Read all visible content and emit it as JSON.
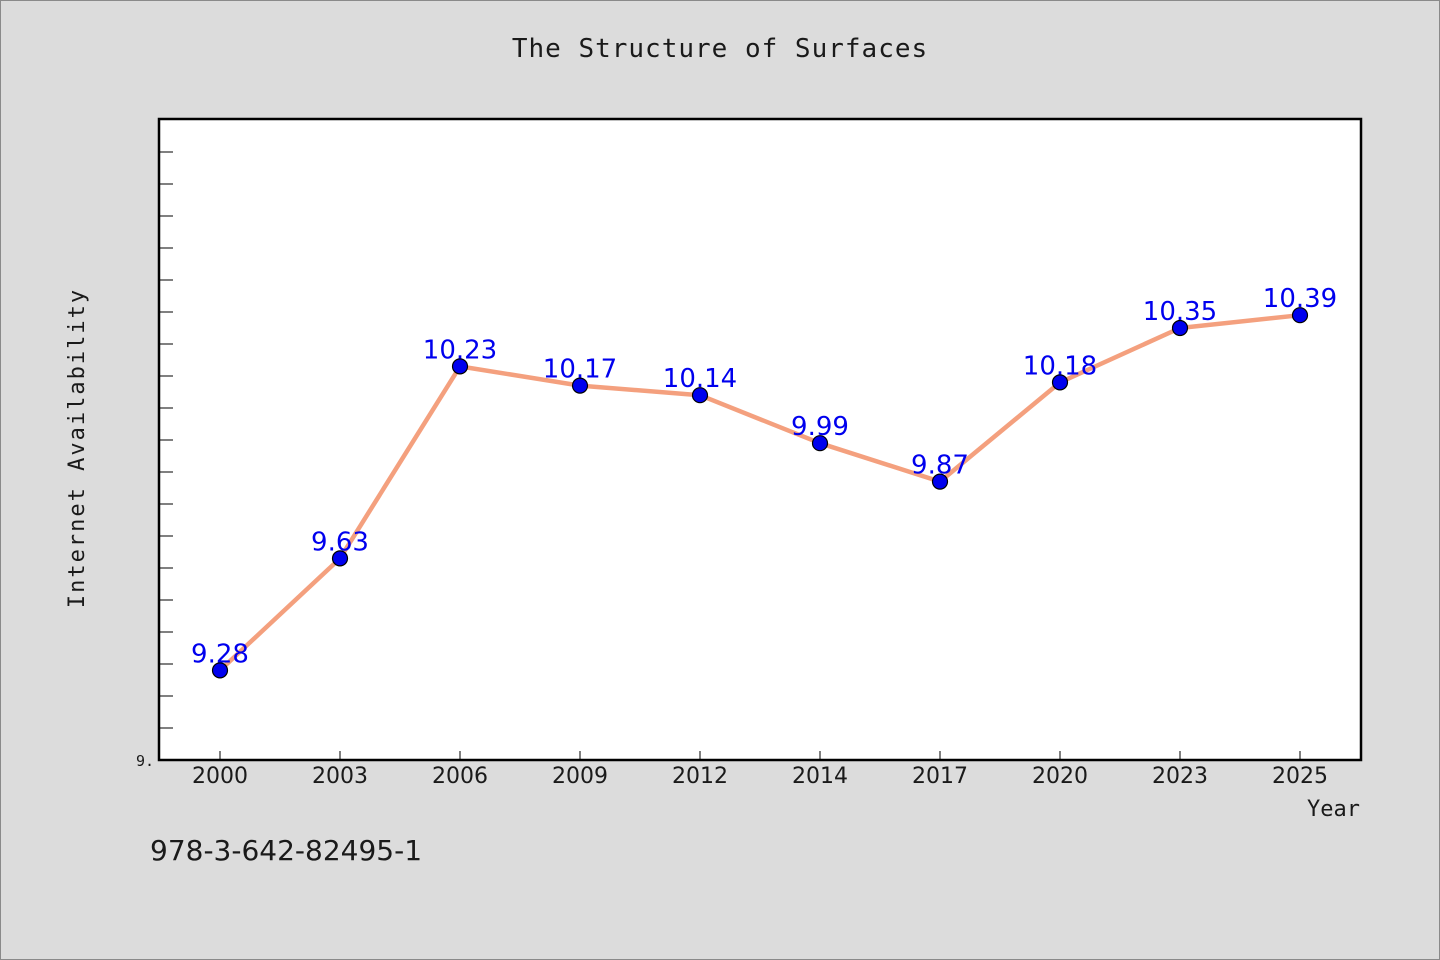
{
  "chart_data": {
    "type": "line",
    "title": "The Structure of Surfaces",
    "xlabel": "Year",
    "ylabel": "Internet Availability",
    "categories": [
      "2000",
      "2003",
      "2006",
      "2009",
      "2012",
      "2014",
      "2017",
      "2020",
      "2023",
      "2025"
    ],
    "series": [
      {
        "values": [
          9.28,
          9.63,
          10.23,
          10.17,
          10.14,
          9.99,
          9.87,
          10.18,
          10.35,
          10.39
        ],
        "data_labels": [
          "9.28",
          "9.63",
          "10.23",
          "10.17",
          "10.14",
          "9.99",
          "9.87",
          "10.18",
          "10.35",
          "10.39"
        ],
        "line_color": "#f4a07e",
        "marker_color": "#0000ee",
        "label_color": "#0000ee"
      }
    ],
    "y_tick_label": "9.",
    "ylim": [
      9.0,
      11.0
    ],
    "grid": false,
    "legend": "none"
  },
  "footer": {
    "isbn": "978-3-642-82495-1"
  }
}
